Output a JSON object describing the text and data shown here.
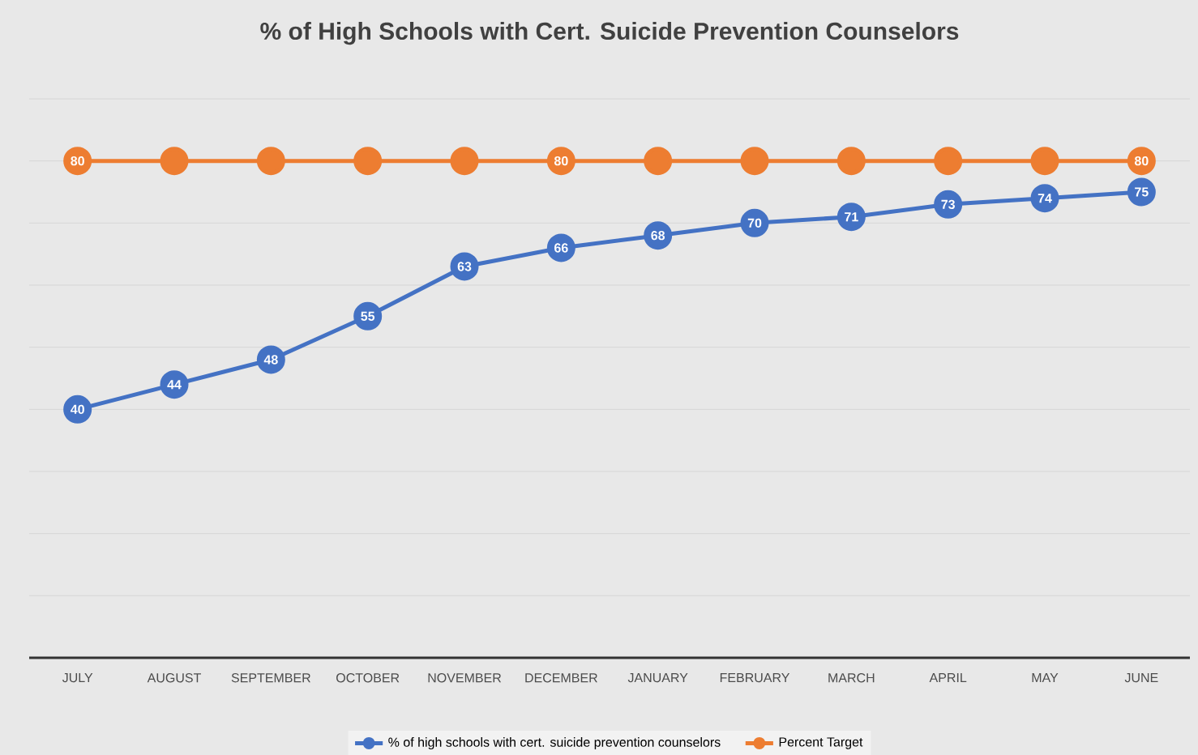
{
  "chart_data": {
    "type": "line",
    "title": "% of High Schools with Cert. Suicide Prevention Counselors",
    "categories": [
      "JULY",
      "AUGUST",
      "SEPTEMBER",
      "OCTOBER",
      "NOVEMBER",
      "DECEMBER",
      "JANUARY",
      "FEBRUARY",
      "MARCH",
      "APRIL",
      "MAY",
      "JUNE"
    ],
    "series": [
      {
        "name": "% of high schools with cert. suicide prevention counselors",
        "color": "#4472c4",
        "values": [
          40,
          44,
          48,
          55,
          63,
          66,
          68,
          70,
          71,
          73,
          74,
          75
        ],
        "value_labels": [
          "40",
          "44",
          "48",
          "55",
          "63",
          "66",
          "68",
          "70",
          "71",
          "73",
          "74",
          "75"
        ]
      },
      {
        "name": "Percent Target",
        "color": "#ed7d31",
        "values": [
          80,
          80,
          80,
          80,
          80,
          80,
          80,
          80,
          80,
          80,
          80,
          80
        ],
        "value_labels": [
          "80",
          null,
          null,
          null,
          null,
          "80",
          null,
          null,
          null,
          null,
          null,
          "80"
        ]
      }
    ],
    "ylim": [
      0,
      90
    ],
    "yticks": [
      0,
      10,
      20,
      30,
      40,
      50,
      60,
      70,
      80,
      90
    ],
    "tick_labels": "x",
    "grid": "y",
    "legend": "bottom",
    "marker": "circle",
    "line_style": "solid"
  }
}
